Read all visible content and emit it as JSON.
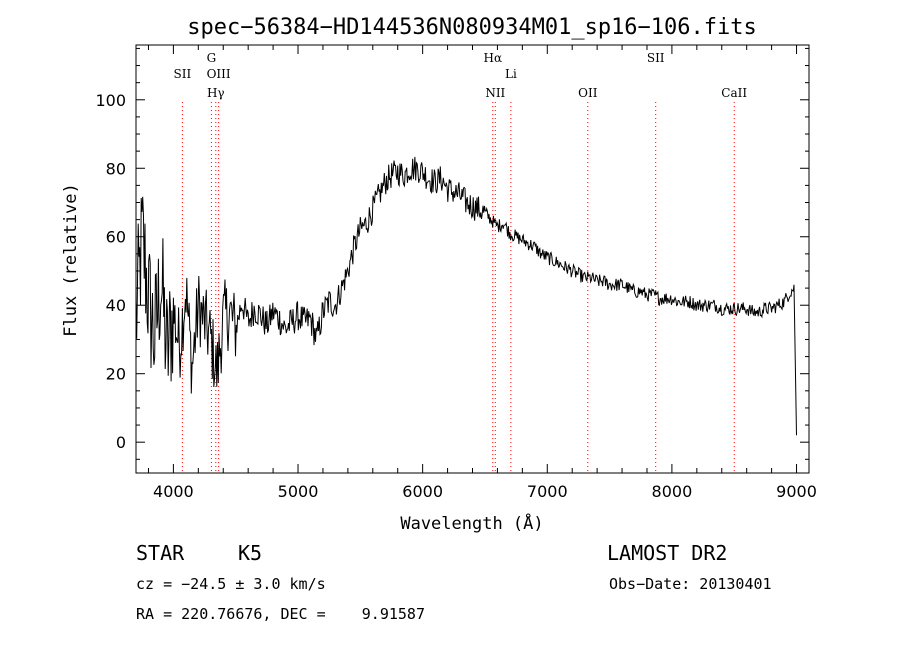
{
  "chart_data": {
    "type": "line",
    "title": "spec−56384−HD144536N080934M01_sp16−106.fits",
    "xlabel": "Wavelength (Å)",
    "ylabel": "Flux (relative)",
    "xlim": [
      3700,
      9100
    ],
    "ylim": [
      -9,
      116
    ],
    "xticks": [
      4000,
      5000,
      6000,
      7000,
      8000,
      9000
    ],
    "yticks": [
      0,
      20,
      40,
      60,
      80,
      100
    ],
    "grid": false,
    "line_color": "#000000",
    "marker_color": "#ff0000",
    "series": [
      {
        "x": [
          3700,
          3750,
          3800,
          3850,
          3900,
          3950,
          4000,
          4050,
          4100,
          4150,
          4200,
          4250,
          4300,
          4350,
          4400,
          4450,
          4500,
          4550,
          4600,
          4650,
          4700,
          4750,
          4800,
          4850,
          4900,
          4950,
          5000,
          5050,
          5100,
          5150,
          5200,
          5250,
          5300,
          5350,
          5400,
          5450,
          5500,
          5550,
          5600,
          5650,
          5700,
          5750,
          5800,
          5850,
          5900,
          5950,
          6000,
          6050,
          6100,
          6150,
          6200,
          6250,
          6300,
          6350,
          6400,
          6450,
          6500,
          6550,
          6600,
          6650,
          6700,
          6750,
          6800,
          6850,
          6900,
          6950,
          7000,
          7050,
          7100,
          7150,
          7200,
          7250,
          7300,
          7350,
          7400,
          7450,
          7500,
          7550,
          7600,
          7650,
          7700,
          7750,
          7800,
          7850,
          7900,
          7950,
          8000,
          8050,
          8100,
          8150,
          8200,
          8250,
          8300,
          8350,
          8400,
          8450,
          8500,
          8550,
          8600,
          8650,
          8700,
          8750,
          8800,
          8850,
          8900,
          8950,
          8980,
          9000
        ],
        "y": [
          35,
          60,
          42,
          30,
          48,
          25,
          38,
          28,
          45,
          22,
          40,
          35,
          30,
          20,
          36,
          38,
          33,
          41,
          35,
          39,
          37,
          34,
          38,
          36,
          33,
          35,
          37,
          35,
          36,
          30,
          38,
          41,
          40,
          45,
          50,
          57,
          62,
          64,
          68,
          72,
          76,
          78,
          79,
          78,
          80,
          80,
          79,
          77,
          76,
          77,
          74,
          73,
          72,
          70,
          69,
          68,
          67,
          65,
          63,
          64,
          61,
          60,
          59,
          58,
          57,
          55,
          54,
          53,
          52,
          51,
          50,
          49,
          48,
          48,
          47,
          47,
          46,
          46,
          46,
          45,
          44,
          44,
          43,
          43,
          42,
          42,
          42,
          41,
          41,
          41,
          40,
          40,
          40,
          40,
          39,
          39,
          39,
          39,
          39,
          38,
          38,
          39,
          39,
          40,
          41,
          44,
          45,
          2
        ]
      }
    ],
    "line_markers": [
      {
        "label": "SII",
        "x": 4072,
        "row": 2
      },
      {
        "label": "G",
        "x": 4305,
        "row": 1
      },
      {
        "label": "OIII",
        "x": 4363,
        "row": 2
      },
      {
        "label": "Hγ",
        "x": 4340,
        "row": 3
      },
      {
        "label": "Hα",
        "x": 6563,
        "row": 1
      },
      {
        "label": "NII",
        "x": 6583,
        "row": 3
      },
      {
        "label": "Li",
        "x": 6708,
        "row": 2
      },
      {
        "label": "OII",
        "x": 7325,
        "row": 3
      },
      {
        "label": "SII",
        "x": 7870,
        "row": 1
      },
      {
        "label": "CaII",
        "x": 8500,
        "row": 3
      }
    ]
  },
  "info": {
    "object_class": "STAR",
    "subclass": "K5",
    "survey": "LAMOST DR2",
    "cz": "cz = −24.5 ± 3.0 km/s",
    "obs_date": "Obs−Date: 20130401",
    "coords": "RA = 220.76676, DEC =    9.91587"
  }
}
